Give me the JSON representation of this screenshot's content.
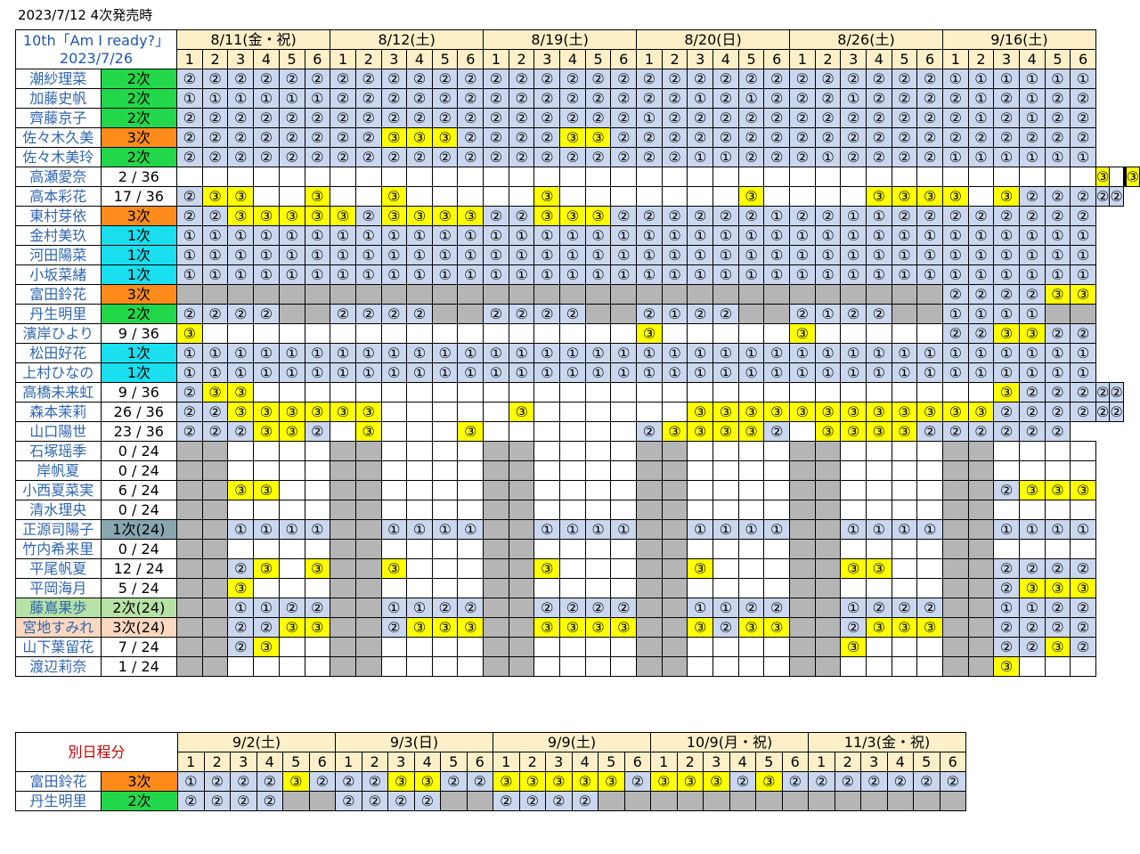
{
  "page_title": "2023/7/12 4次発売時",
  "event_title": "10th「Am I ready?」",
  "event_date": "2023/7/26",
  "sub_title": "別日程分",
  "slot_numbers": [
    "1",
    "2",
    "3",
    "4",
    "5",
    "6"
  ],
  "colors": {
    "status_green": "#22d84a",
    "status_orange": "#ff8c1a",
    "status_cyan": "#19dfef",
    "status_steel": "#88a7b0",
    "status_lightgreen": "#b6e3a5",
    "status_peach": "#fbd8bf",
    "mark_blue": "#cad7ee",
    "mark_yellow": "#ffff00",
    "unavailable_gray": "#b5b5b5",
    "header_cream": "#fdefc8"
  },
  "main": {
    "dates": [
      "8/11(金・祝)",
      "8/12(土)",
      "8/19(土)",
      "8/20(日)",
      "8/26(土)",
      "9/16(土)"
    ],
    "groups": [
      [
        {
          "name": "潮紗理菜",
          "status": "2次",
          "sc": "g",
          "slots": "222222222222222222222222222222111111"
        },
        {
          "name": "加藤史帆",
          "status": "2次",
          "sc": "g",
          "slots": "111111222222222222221212221222212122"
        },
        {
          "name": "齊藤京子",
          "status": "2次",
          "sc": "g",
          "slots": "222222222222222222122222222222212122"
        },
        {
          "name": "佐々木久美",
          "status": "3次",
          "sc": "o",
          "slots": "222222223332222332222222222222222222"
        },
        {
          "name": "佐々木美玲",
          "status": "2次",
          "sc": "g",
          "slots": "222222222222222222221122212222111111"
        },
        {
          "name": "高瀬愛奈",
          "status": "2 / 36",
          "sc": "w",
          "slots": "....................................3....3"
        },
        {
          "name": "高本彩花",
          "status": "17 / 36",
          "sc": "w",
          "slots": "233..3..3.....3.......3....3333.322222"
        },
        {
          "name": "東村芽依",
          "status": "3次",
          "sc": "o",
          "slots": "223333323333223332222221221122222222"
        }
      ],
      [
        {
          "name": "金村美玖",
          "status": "1次",
          "sc": "c",
          "slots": "111111111111111111111111111111111111"
        },
        {
          "name": "河田陽菜",
          "status": "1次",
          "sc": "c",
          "slots": "111111111111111111111111111111111111"
        },
        {
          "name": "小坂菜緒",
          "status": "1次",
          "sc": "c",
          "slots": "111111111111111111111111111111111111"
        },
        {
          "name": "富田鈴花",
          "status": "3次",
          "sc": "o",
          "slots": "xxxxxxxxxxxxxxxxxxxxxxxxxxxxxx222233"
        },
        {
          "name": "丹生明里",
          "status": "2次",
          "sc": "g",
          "slots": "2222xx2222xx2222xx2122xx2122xx1111xx"
        },
        {
          "name": "濱岸ひより",
          "status": "9 / 36",
          "sc": "w",
          "slots": "3.................3.....3.....223322"
        },
        {
          "name": "松田好花",
          "status": "1次",
          "sc": "c",
          "slots": "111111111111111111111111111111111111"
        }
      ],
      [
        {
          "name": "上村ひなの",
          "status": "1次",
          "sc": "c",
          "slots": "111111111111111111111111111111111111"
        },
        {
          "name": "高橋未来虹",
          "status": "9 / 36",
          "sc": "w",
          "slots": "233.............................322222"
        },
        {
          "name": "森本茉莉",
          "status": "26 / 36",
          "sc": "w",
          "slots": "22333333.....3......333333333333222222"
        },
        {
          "name": "山口陽世",
          "status": "23 / 36",
          "sc": "w",
          "slots": "222332.3...3......233332.3333222222"
        }
      ],
      [
        {
          "name": "石塚瑶季",
          "status": "0 / 24",
          "sc": "w",
          "slots": "xx....xx....xx....xx....xx....xx...."
        },
        {
          "name": "岸帆夏",
          "status": "0 / 24",
          "sc": "w",
          "slots": "xx....xx....xx....xx....xx....xx...."
        },
        {
          "name": "小西夏菜実",
          "status": "6 / 24",
          "sc": "w",
          "slots": "xx33..xx....xx....xx....xx....xx2333"
        },
        {
          "name": "清水理央",
          "status": "0 / 24",
          "sc": "w",
          "slots": "xx....xx....xx....xx....xx....xx...."
        },
        {
          "name": "正源司陽子",
          "status": "1次(24)",
          "sc": "s",
          "slots": "xx1111xx1111xx1111xx1111xx1111xx1111"
        },
        {
          "name": "竹内希来里",
          "status": "0 / 24",
          "sc": "w",
          "slots": "xx....xx....xx....xx....xx....xx...."
        },
        {
          "name": "平尾帆夏",
          "status": "12 / 24",
          "sc": "w",
          "slots": "xx23.3xx3...xx3...xx3...xx33..xx2222"
        },
        {
          "name": "平岡海月",
          "status": "5 / 24",
          "sc": "w",
          "slots": "xx3...xx....xx....xx....xx....xx2333"
        },
        {
          "name": "藤嶌果歩",
          "status": "2次(24)",
          "sc": "l",
          "slots": "xx1122xx1122xx2222xx1122xx1222xx1122"
        },
        {
          "name": "宮地すみれ",
          "status": "3次(24)",
          "sc": "p",
          "slots": "xx2233xx2333xx3333xx3233xx2333xx2222"
        },
        {
          "name": "山下葉留花",
          "status": "7 / 24",
          "sc": "w",
          "slots": "xx23..xx....xx....xx....xx3...xx2232"
        },
        {
          "name": "渡辺莉奈",
          "status": "1 / 24",
          "sc": "w",
          "slots": "xx....xx....xx....xx....xx....xx3..."
        }
      ]
    ]
  },
  "sub": {
    "dates": [
      "9/2(土)",
      "9/3(日)",
      "9/9(土)",
      "10/9(月・祝)",
      "11/3(金・祝)"
    ],
    "rows": [
      {
        "name": "富田鈴花",
        "status": "3次",
        "sc": "o",
        "slots": "122232223322333332333232222222"
      },
      {
        "name": "丹生明里",
        "status": "2次",
        "sc": "g",
        "slots": "2222xx2222xx2222xxxxxxxxxxxxxx"
      }
    ]
  }
}
